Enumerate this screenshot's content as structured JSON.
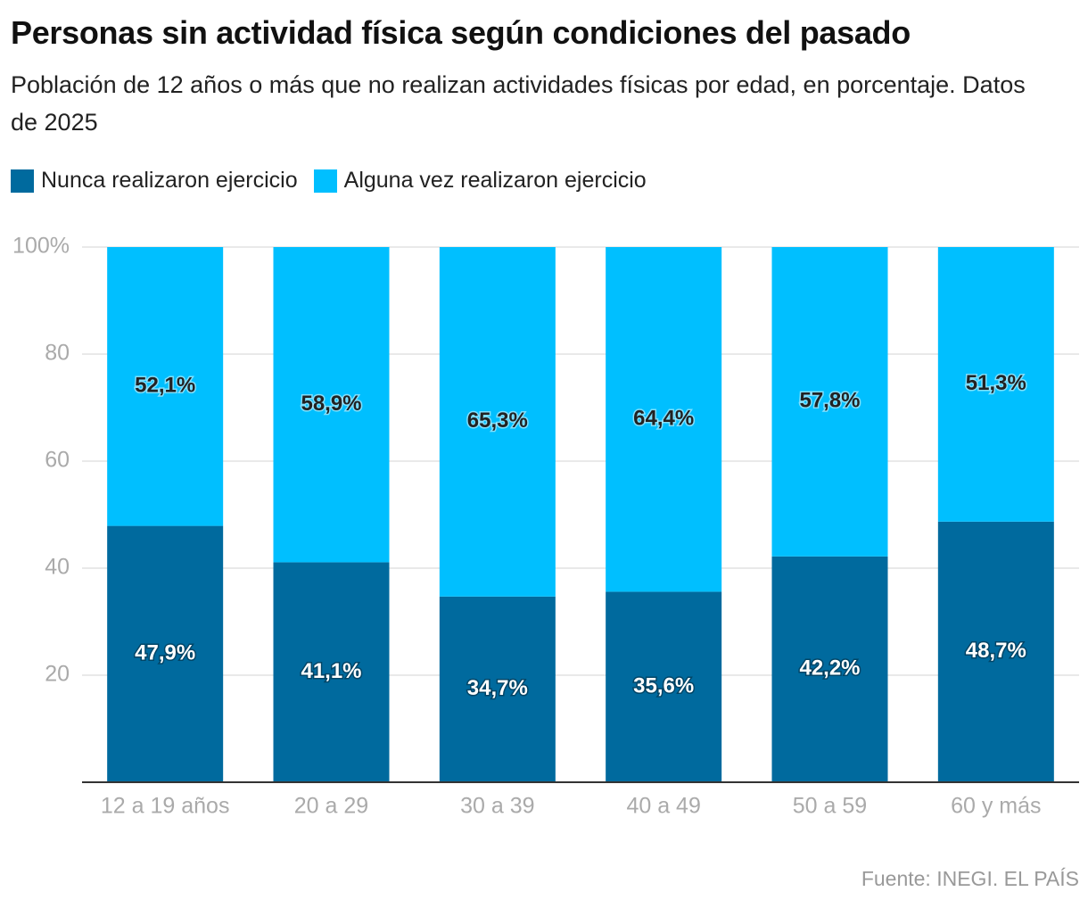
{
  "chart_data": {
    "type": "stacked-bar",
    "title": "Personas sin actividad física según condiciones del pasado",
    "subtitle": "Población de 12 años o más que no realizan actividades físicas por edad, en porcentaje. Datos de 2025",
    "categories": [
      "12 a 19 años",
      "20 a 29",
      "30 a 39",
      "40 a 49",
      "50 a 59",
      "60 y más"
    ],
    "series": [
      {
        "name": "Nunca realizaron ejercicio",
        "color": "#006a9e",
        "values": [
          47.9,
          41.1,
          34.7,
          35.6,
          42.2,
          48.7
        ],
        "value_labels": [
          "47,9%",
          "41,1%",
          "34,7%",
          "35,6%",
          "42,2%",
          "48,7%"
        ]
      },
      {
        "name": "Alguna vez realizaron ejercicio",
        "color": "#00bfff",
        "values": [
          52.1,
          58.9,
          65.3,
          64.4,
          57.8,
          51.3
        ],
        "value_labels": [
          "52,1%",
          "58,9%",
          "65,3%",
          "64,4%",
          "57,8%",
          "51,3%"
        ]
      }
    ],
    "ylim": [
      0,
      100
    ],
    "yticks": [
      20,
      40,
      60,
      80,
      {
        "value": 100,
        "label": "100%"
      }
    ],
    "grid": true,
    "source": "Fuente: INEGI. EL PAÍS"
  }
}
